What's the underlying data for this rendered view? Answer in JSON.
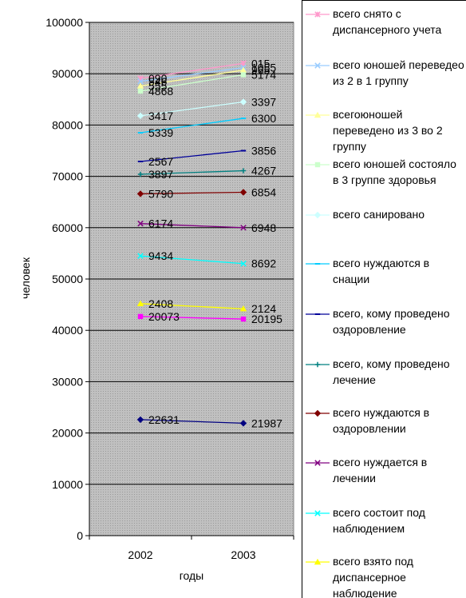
{
  "chart_data": {
    "type": "line",
    "title": "",
    "xlabel": "годы",
    "ylabel": "человек",
    "categories": [
      "2002",
      "2003"
    ],
    "ylim": [
      0,
      100000
    ],
    "yticks": [
      0,
      10000,
      20000,
      30000,
      40000,
      50000,
      60000,
      70000,
      80000,
      90000,
      100000
    ],
    "grid": true,
    "legend_position": "right",
    "plot_background": "#c0c0c0",
    "series": [
      {
        "name": "всего снято с диспансерного учета",
        "color": "#ff99cc",
        "marker": "star",
        "values": [
          89090,
          92015
        ],
        "labels": [
          "090",
          "015"
        ]
      },
      {
        "name": "всего юношей переведео из 2 в 1 группу",
        "color": "#99ccff",
        "marker": "x",
        "values": [
          88500,
          91200
        ],
        "labels": [
          "546",
          "1055"
        ]
      },
      {
        "name": "всегоюношей переведено из 3 во 2 группу",
        "color": "#ffff99",
        "marker": "triangle",
        "values": [
          87600,
          90700
        ],
        "labels": [
          "555",
          "965"
        ]
      },
      {
        "name": "всего юношей состояло в 3 группе здоровья",
        "color": "#ccffcc",
        "marker": "square",
        "values": [
          86600,
          89800
        ],
        "labels": [
          "4868",
          "5174"
        ]
      },
      {
        "name": "всего санировано",
        "color": "#ccffff",
        "marker": "diamond",
        "values": [
          81800,
          84500
        ],
        "labels": [
          "3417",
          "3397"
        ]
      },
      {
        "name": "всего нуждаются в снации",
        "color": "#00ccff",
        "marker": "dash",
        "values": [
          78500,
          81300
        ],
        "labels": [
          "5339",
          "6300"
        ]
      },
      {
        "name": "всего, кому проведено оздоровление",
        "color": "#000099",
        "marker": "dash",
        "values": [
          72900,
          75000
        ],
        "labels": [
          "2567",
          "3856"
        ]
      },
      {
        "name": "всего, кому проведено лечение",
        "color": "#008080",
        "marker": "plus",
        "values": [
          70400,
          71100
        ],
        "labels": [
          "3897",
          "4267"
        ]
      },
      {
        "name": "всего нуждаются в оздоровлении",
        "color": "#800000",
        "marker": "diamond",
        "values": [
          66600,
          66900
        ],
        "labels": [
          "5790",
          "6854"
        ]
      },
      {
        "name": "всего нуждается в лечении",
        "color": "#800080",
        "marker": "x",
        "values": [
          60800,
          60000
        ],
        "labels": [
          "6174",
          "6948"
        ]
      },
      {
        "name": "всего состоит под наблюдением",
        "color": "#00ffff",
        "marker": "x",
        "values": [
          54500,
          53000
        ],
        "labels": [
          "9434",
          "8692"
        ]
      },
      {
        "name": "всего взято под диспансерное наблюдение",
        "color": "#ffff00",
        "marker": "triangle",
        "values": [
          45200,
          44200
        ],
        "labels": [
          "2408",
          "2124"
        ]
      },
      {
        "name": "",
        "color": "#ff00ff",
        "marker": "square",
        "values": [
          42700,
          42200
        ],
        "labels": [
          "20073",
          "20195"
        ]
      },
      {
        "name": "",
        "color": "#000080",
        "marker": "diamond",
        "values": [
          22600,
          21900
        ],
        "labels": [
          "22631",
          "21987"
        ]
      }
    ]
  }
}
